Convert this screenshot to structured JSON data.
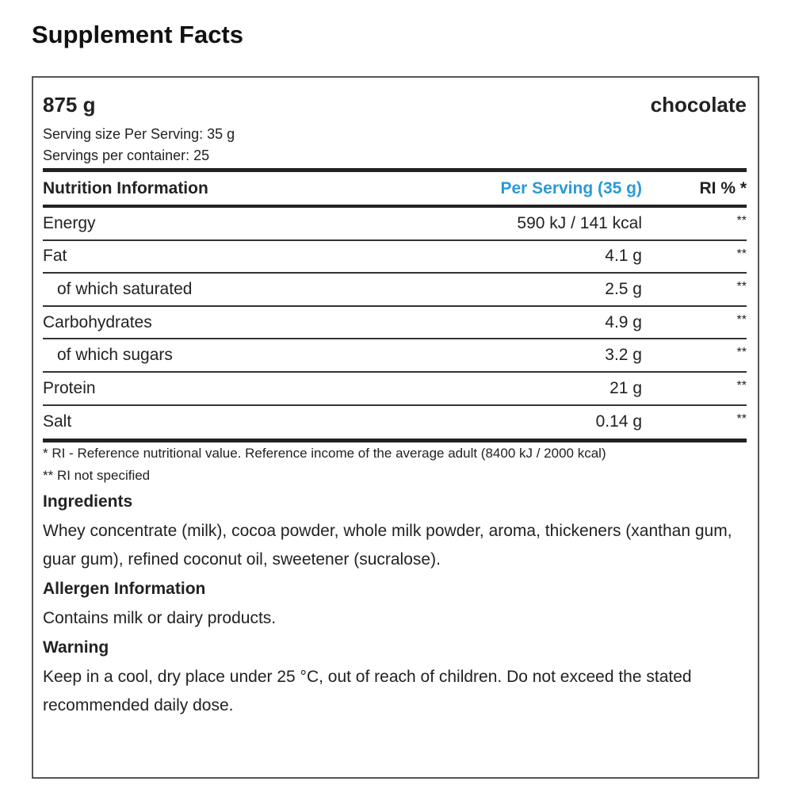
{
  "title": "Supplement Facts",
  "product": {
    "amount": "875 g",
    "flavor": "chocolate",
    "serving_size": "Serving size Per Serving: 35 g",
    "servings": "Servings per container: 25"
  },
  "table": {
    "header": [
      "Nutrition Information",
      "Per Serving (35 g)",
      "RI % *"
    ],
    "rows": [
      [
        "Energy",
        "590 kJ / 141 kcal",
        "**"
      ],
      [
        "of which saturated",
        "2.5 g",
        "**"
      ],
      [
        "Carbohydrates",
        "4.9 g",
        "**"
      ],
      [
        "of which sugars",
        "3.2 g",
        "**"
      ],
      [
        "Protein",
        "21 g",
        "**"
      ],
      [
        "Salt",
        "0.14 g",
        "**"
      ],
      [
        "Fat",
        "4.1 g",
        "**"
      ]
    ]
  },
  "footnotes": [
    "* RI - Reference nutritional value. Reference income of the average adult (8400 kJ / 2000 kcal)",
    "** RI not specified"
  ],
  "sections": [
    {
      "heading": "Ingredients",
      "text": "Whey concentrate (milk), cocoa powder, whole milk powder, aroma, thickeners (xanthan gum, guar gum), refined coconut oil, sweetener (sucralose)."
    },
    {
      "heading": "Allergen Information",
      "text": "Contains milk or dairy products."
    },
    {
      "heading": "Warning",
      "text": "Keep in a cool, dry place under 25 °C, out of reach of children. Do not exceed the stated recommended daily dose."
    }
  ]
}
